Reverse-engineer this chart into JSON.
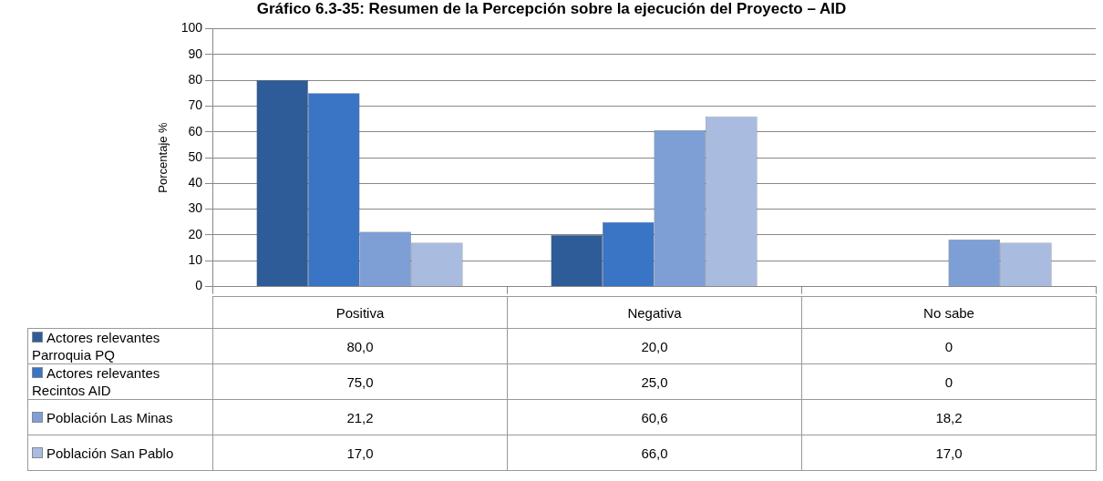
{
  "chart_data": {
    "type": "bar",
    "title": "Gráfico 6.3-35: Resumen de la Percepción sobre la ejecución del Proyecto – AID",
    "ylabel": "Porcentaje %",
    "categories": [
      "Positiva",
      "Negativa",
      "No sabe"
    ],
    "series": [
      {
        "name": "Actores relevantes Parroquia PQ",
        "color": "#2e5c99",
        "values": [
          80.0,
          20.0,
          0
        ],
        "value_labels": [
          "80,0",
          "20,0",
          "0"
        ]
      },
      {
        "name": "Actores relevantes Recintos AID",
        "color": "#3a74c4",
        "values": [
          75.0,
          25.0,
          0
        ],
        "value_labels": [
          "75,0",
          "25,0",
          "0"
        ]
      },
      {
        "name": "Población Las Minas",
        "color": "#7d9fd6",
        "values": [
          21.2,
          60.6,
          18.2
        ],
        "value_labels": [
          "21,2",
          "60,6",
          "18,2"
        ]
      },
      {
        "name": "Población San Pablo",
        "color": "#a9bce0",
        "values": [
          17.0,
          66.0,
          17.0
        ],
        "value_labels": [
          "17,0",
          "66,0",
          "17,0"
        ]
      }
    ],
    "ylim": [
      0,
      100
    ],
    "yticks": [
      0,
      10,
      20,
      30,
      40,
      50,
      60,
      70,
      80,
      90,
      100
    ],
    "grid": "y",
    "legend": "bottom"
  }
}
